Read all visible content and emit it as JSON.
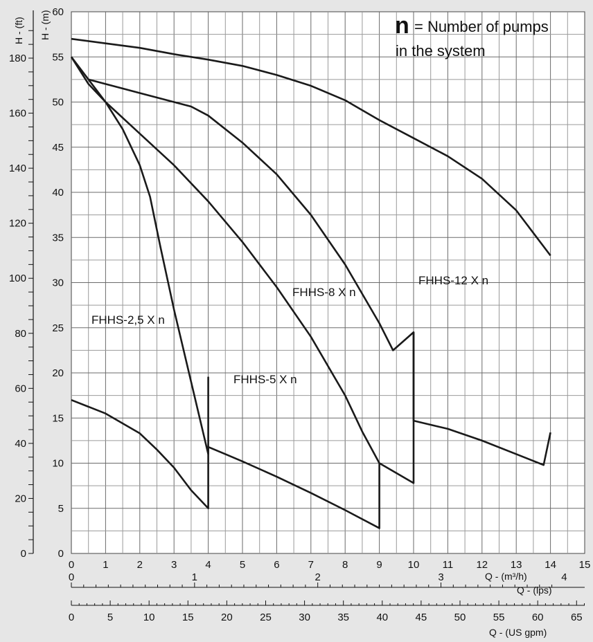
{
  "chart_data": {
    "type": "line",
    "title": "",
    "grid": true,
    "y_axes": {
      "meters": {
        "label": "H - (m)",
        "lim": [
          0,
          60
        ],
        "ticks": [
          0,
          5,
          10,
          15,
          20,
          25,
          30,
          35,
          40,
          45,
          50,
          55,
          60
        ]
      },
      "feet": {
        "label": "H - (ft)",
        "lim": [
          0,
          196.85
        ],
        "ticks": [
          0,
          20,
          40,
          60,
          80,
          100,
          120,
          140,
          160,
          180
        ]
      }
    },
    "x_axes": {
      "m3h": {
        "label": "Q - (m³/h)",
        "lim": [
          0,
          15
        ],
        "ticks": [
          0,
          1,
          2,
          3,
          4,
          5,
          6,
          7,
          8,
          9,
          10,
          11,
          12,
          13,
          14,
          15
        ]
      },
      "lps": {
        "label": "Q - (lps)",
        "ticks": [
          0,
          1,
          2,
          3,
          4
        ]
      },
      "usgpm": {
        "label": "Q - (US gpm)",
        "ticks": [
          0,
          5,
          10,
          15,
          20,
          25,
          30,
          35,
          40,
          45,
          50,
          55,
          60,
          65
        ]
      }
    },
    "annotation": {
      "n": "n",
      "line1": "= Number of pumps",
      "line2": "in the system"
    },
    "series": [
      {
        "name": "FHHS-2,5 X n",
        "points": [
          [
            0,
            55
          ],
          [
            0.5,
            52
          ],
          [
            1,
            50
          ],
          [
            1.5,
            47
          ],
          [
            2,
            43
          ],
          [
            2.3,
            39.5
          ],
          [
            2.6,
            34
          ],
          [
            3,
            27
          ],
          [
            3.5,
            19
          ],
          [
            4,
            11
          ],
          [
            4,
            19.5
          ],
          [
            4,
            11.8
          ],
          [
            4.5,
            11
          ],
          [
            5,
            10.2
          ],
          [
            6,
            8.5
          ],
          [
            7,
            6.7
          ],
          [
            8,
            4.8
          ],
          [
            9,
            2.8
          ],
          [
            9,
            10
          ],
          [
            9,
            2.8
          ]
        ],
        "drop_curve": [
          [
            0,
            17
          ],
          [
            1,
            15.5
          ],
          [
            2,
            13.3
          ],
          [
            2.5,
            11.5
          ],
          [
            3,
            9.5
          ],
          [
            3.5,
            7
          ],
          [
            4,
            5
          ],
          [
            4,
            11.8
          ]
        ]
      },
      {
        "name": "FHHS-5 X n",
        "points": [
          [
            0,
            55
          ],
          [
            0.5,
            52.5
          ],
          [
            1,
            50
          ],
          [
            2,
            46.5
          ],
          [
            3,
            43
          ],
          [
            4,
            39
          ],
          [
            5,
            34.5
          ],
          [
            6,
            29.5
          ],
          [
            7,
            24
          ],
          [
            8,
            17.5
          ],
          [
            8.5,
            13.5
          ],
          [
            9,
            10
          ],
          [
            10,
            7.8
          ],
          [
            10,
            24.5
          ]
        ]
      },
      {
        "name": "FHHS-8 X n",
        "points": [
          [
            0.5,
            52.5
          ],
          [
            2,
            51
          ],
          [
            3,
            50
          ],
          [
            3.5,
            49.5
          ],
          [
            4,
            48.5
          ],
          [
            5,
            45.5
          ],
          [
            6,
            42
          ],
          [
            7,
            37.5
          ],
          [
            8,
            32
          ],
          [
            9,
            25.5
          ],
          [
            9.4,
            22.5
          ],
          [
            10,
            24.5
          ],
          [
            10,
            14.7
          ],
          [
            11,
            13.8
          ],
          [
            12,
            12.5
          ],
          [
            13,
            11
          ],
          [
            13.8,
            9.8
          ],
          [
            14,
            13.4
          ]
        ]
      },
      {
        "name": "FHHS-12 X n",
        "points": [
          [
            0,
            57
          ],
          [
            1,
            56.5
          ],
          [
            2,
            56
          ],
          [
            3,
            55.3
          ],
          [
            4,
            54.7
          ],
          [
            5,
            54
          ],
          [
            6,
            53
          ],
          [
            7,
            51.8
          ],
          [
            8,
            50.2
          ],
          [
            9,
            48
          ],
          [
            10,
            46
          ],
          [
            11,
            44
          ],
          [
            12,
            41.5
          ],
          [
            13,
            38
          ],
          [
            14,
            33
          ]
        ]
      }
    ]
  }
}
